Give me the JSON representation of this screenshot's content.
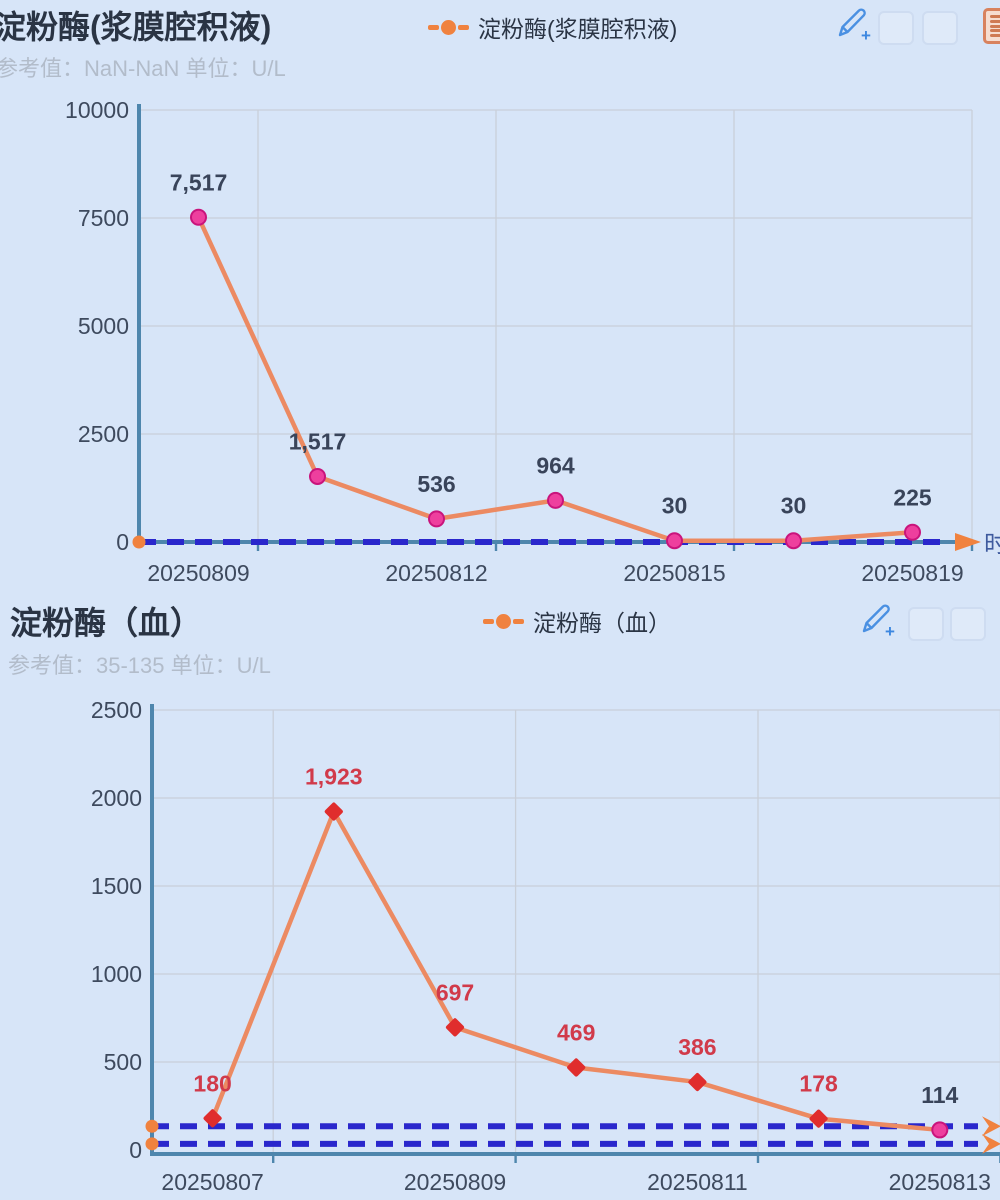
{
  "theme": {
    "background": "#d7e5f8",
    "title_color": "#2a3444",
    "subtitle_color": "#b2bcca",
    "tick_color": "#3e4a5e",
    "axis_color": "#4e86ad",
    "grid_color": "#c9cfd9",
    "line_color": "#ec8a62",
    "marker_normal_fill": "#ee3f9e",
    "marker_normal_edge": "#c9147c",
    "marker_abnormal_fill": "#e02d2d",
    "label_normal_color": "#39445a",
    "label_abnormal_color": "#d13a4a",
    "reference_line_color": "#2a27cc",
    "accent_orange": "#f0823f",
    "edit_icon_color": "#4a90e2"
  },
  "icons": {
    "edit": "pencil-plus-icon",
    "ghost": "faded-button-icon",
    "list": "report-list-icon",
    "legend_marker": "line-dot-marker"
  },
  "chart_data": [
    {
      "type": "line",
      "name": "amylase-serous-fluid",
      "title": "淀粉酶(浆膜腔积液)",
      "subtitle": "参考值：NaN-NaN 单位：U/L",
      "reference_value": "NaN-NaN",
      "unit": "U/L",
      "legend": [
        "淀粉酶(浆膜腔积液)"
      ],
      "xlabel": "时间",
      "ylabel": "",
      "ylim": [
        0,
        10000
      ],
      "y_ticks": [
        0,
        2500,
        5000,
        7500,
        10000
      ],
      "grid": true,
      "legend_position": "top-center",
      "x_ticks": [
        {
          "index": 0,
          "label": "20250809"
        },
        {
          "index": 2,
          "label": "20250812"
        },
        {
          "index": 4,
          "label": "20250815"
        },
        {
          "index": 6,
          "label": "20250819"
        }
      ],
      "points": [
        {
          "value": 7517,
          "label": "7,517",
          "abnormal": false
        },
        {
          "value": 1517,
          "label": "1,517",
          "abnormal": false
        },
        {
          "value": 536,
          "label": "536",
          "abnormal": false
        },
        {
          "value": 964,
          "label": "964",
          "abnormal": false
        },
        {
          "value": 30,
          "label": "30",
          "abnormal": false
        },
        {
          "value": 30,
          "label": "30",
          "abnormal": false
        },
        {
          "value": 225,
          "label": "225",
          "abnormal": false
        }
      ],
      "reference_lines": [
        0
      ]
    },
    {
      "type": "line",
      "name": "amylase-blood",
      "title": "淀粉酶（血）",
      "subtitle": "参考值：35-135 单位：U/L",
      "reference_value": "35-135",
      "unit": "U/L",
      "legend": [
        "淀粉酶（血）"
      ],
      "xlabel": "",
      "ylabel": "",
      "ylim": [
        0,
        2500
      ],
      "y_ticks": [
        0,
        500,
        1000,
        1500,
        2000,
        2500
      ],
      "grid": true,
      "legend_position": "top-center",
      "x_ticks": [
        {
          "index": 0,
          "label": "20250807"
        },
        {
          "index": 2,
          "label": "20250809"
        },
        {
          "index": 4,
          "label": "20250811"
        },
        {
          "index": 6,
          "label": "20250813"
        }
      ],
      "points": [
        {
          "value": 180,
          "label": "180",
          "abnormal": true
        },
        {
          "value": 1923,
          "label": "1,923",
          "abnormal": true
        },
        {
          "value": 697,
          "label": "697",
          "abnormal": true
        },
        {
          "value": 469,
          "label": "469",
          "abnormal": true
        },
        {
          "value": 386,
          "label": "386",
          "abnormal": true
        },
        {
          "value": 178,
          "label": "178",
          "abnormal": true
        },
        {
          "value": 114,
          "label": "114",
          "abnormal": false
        }
      ],
      "reference_lines": [
        135,
        35
      ]
    }
  ]
}
